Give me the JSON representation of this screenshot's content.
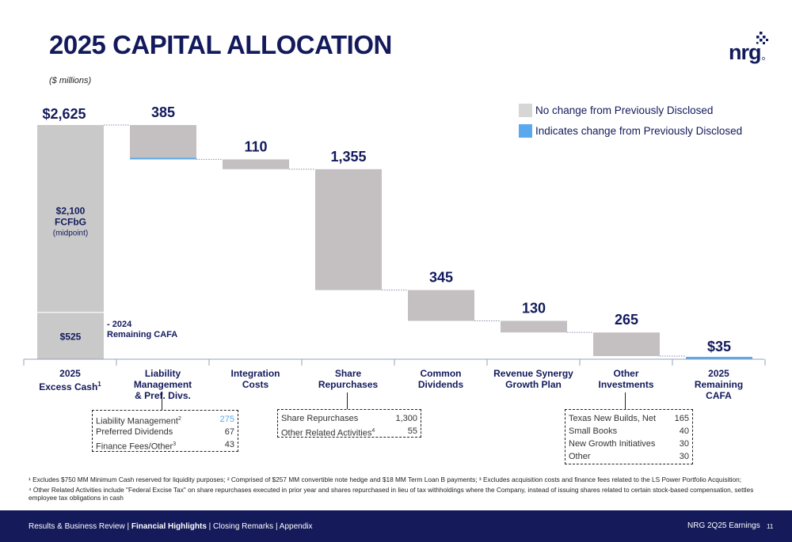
{
  "page": {
    "title": "2025 CAPITAL ALLOCATION",
    "subtitle": "($ millions)",
    "logo_text": "nrg"
  },
  "legend": [
    {
      "label": "No change from Previously Disclosed",
      "color": "#d6d6d6"
    },
    {
      "label": "Indicates change from Previously Disclosed",
      "color": "#5aa9ee"
    }
  ],
  "chart_data": {
    "type": "bar",
    "subtype": "waterfall",
    "categories": [
      "2025\nExcess Cash¹",
      "Liability Management\n& Pref. Divs.",
      "Integration\nCosts",
      "Share\nRepurchases",
      "Common\nDividends",
      "Revenue Synergy\nGrowth Plan",
      "Other\nInvestments",
      "2025\nRemaining\nCAFA"
    ],
    "values": [
      2625,
      -385,
      -110,
      -1355,
      -345,
      -130,
      -265,
      35
    ],
    "value_labels": [
      "$2,625",
      "385",
      "110",
      "1,355",
      "345",
      "130",
      "265",
      "$35"
    ],
    "start_bar_components": [
      {
        "label": "$2,100",
        "sublabel": "FCFbG",
        "note": "(midpoint)",
        "value": 2100
      },
      {
        "label": "$525",
        "value": 525,
        "side_note": "- 2024\n  Remaining CAFA"
      }
    ],
    "changed_portions": [
      {
        "category_index": 1,
        "value": 10
      },
      {
        "category_index": 7,
        "value": 35
      }
    ],
    "colors": {
      "bar": "#c4c0c2",
      "start_bar": "#c9c9c9",
      "changed": "#5aa9ee",
      "text": "#131a5c"
    },
    "ylim": [
      0,
      2850
    ]
  },
  "breakdowns": {
    "liability": {
      "rows": [
        {
          "label": "Liability Management",
          "sup": "2",
          "value": "275",
          "changed": true
        },
        {
          "label": "Preferred Dividends",
          "sup": "",
          "value": "67",
          "changed": false
        },
        {
          "label": "Finance Fees/Other",
          "sup": "3",
          "value": "43",
          "changed": false
        }
      ]
    },
    "repurchases": {
      "rows": [
        {
          "label": "Share Repurchases",
          "sup": "",
          "value": "1,300"
        },
        {
          "label": "Other Related Activities",
          "sup": "4",
          "value": "55"
        }
      ]
    },
    "other": {
      "rows": [
        {
          "label": "Texas New Builds, Net",
          "value": "165"
        },
        {
          "label": "Small Books",
          "value": "40"
        },
        {
          "label": "New Growth Initiatives",
          "value": "30"
        },
        {
          "label": "Other",
          "value": "30"
        }
      ]
    }
  },
  "footnotes": [
    "¹ Excludes $750 MM Minimum Cash reserved for liquidity purposes; ² Comprised of $257 MM convertible note hedge and $18 MM Term Loan B payments; ³ Excludes acquisition costs and finance fees related to the LS Power Portfolio Acquisition;",
    "⁴ Other Related Activities include \"Federal Excise Tax\" on share repurchases executed in prior year and shares repurchased in lieu of tax withholdings where the Company, instead of issuing shares related to certain stock-based compensation, settles employee tax obligations in cash"
  ],
  "footer": {
    "nav_pre": "Results & Business Review | ",
    "nav_bold": "Financial Highlights",
    "nav_post": " | Closing Remarks | Appendix",
    "right": "NRG 2Q25 Earnings",
    "page_number": "11"
  }
}
